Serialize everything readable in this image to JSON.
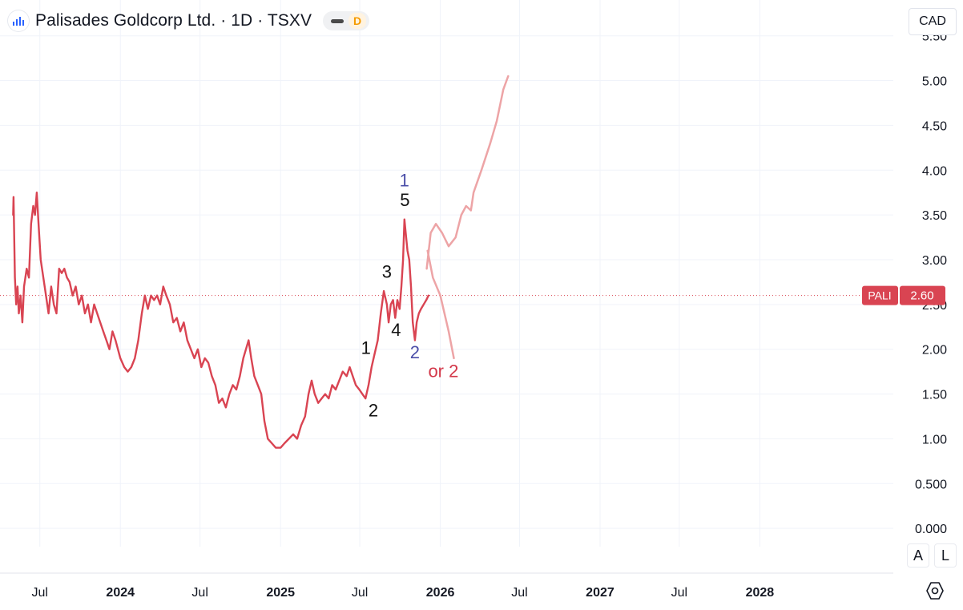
{
  "header": {
    "title": "Palisades Goldcorp Ltd. · 1D · TSXV",
    "interval_badge": "D"
  },
  "currency": "CAD",
  "buttons": {
    "auto": "A",
    "log": "L"
  },
  "colors": {
    "price_line": "#d94452",
    "projection": "#eda4a6",
    "wave_label": "#111111",
    "alt_wave_label": "#4b4ea8",
    "alt_or": "#d3384a"
  },
  "chart_data": {
    "type": "line",
    "ylim": [
      -0.5,
      5.9
    ],
    "y_ticks": [
      "0.000",
      "0.500",
      "1.00",
      "1.50",
      "2.00",
      "2.50",
      "3.00",
      "3.50",
      "4.00",
      "4.50",
      "5.00",
      "5.50"
    ],
    "y_tick_values": [
      0,
      0.5,
      1,
      1.5,
      2,
      2.5,
      3,
      3.5,
      4,
      4.5,
      5,
      5.5
    ],
    "x_range": [
      "2023-04-01",
      "2028-11-01"
    ],
    "x_ticks": [
      {
        "label": "Jul",
        "date": "2023-07-01",
        "bold": false
      },
      {
        "label": "2024",
        "date": "2024-01-01",
        "bold": true
      },
      {
        "label": "Jul",
        "date": "2024-07-01",
        "bold": false
      },
      {
        "label": "2025",
        "date": "2025-01-01",
        "bold": true
      },
      {
        "label": "Jul",
        "date": "2025-07-01",
        "bold": false
      },
      {
        "label": "2026",
        "date": "2026-01-01",
        "bold": true
      },
      {
        "label": "Jul",
        "date": "2026-07-01",
        "bold": false
      },
      {
        "label": "2027",
        "date": "2027-01-01",
        "bold": true
      },
      {
        "label": "Jul",
        "date": "2027-07-01",
        "bold": false
      },
      {
        "label": "2028",
        "date": "2028-01-01",
        "bold": true
      }
    ],
    "last_price": {
      "symbol": "PALI",
      "value": "2.60",
      "y": 2.6
    },
    "series": [
      {
        "style": "price",
        "points": [
          [
            "2023-05-01",
            3.5
          ],
          [
            "2023-05-02",
            3.7
          ],
          [
            "2023-05-05",
            2.8
          ],
          [
            "2023-05-08",
            2.5
          ],
          [
            "2023-05-11",
            2.7
          ],
          [
            "2023-05-14",
            2.4
          ],
          [
            "2023-05-18",
            2.6
          ],
          [
            "2023-05-22",
            2.3
          ],
          [
            "2023-05-26",
            2.7
          ],
          [
            "2023-06-01",
            2.9
          ],
          [
            "2023-06-06",
            2.8
          ],
          [
            "2023-06-11",
            3.4
          ],
          [
            "2023-06-16",
            3.6
          ],
          [
            "2023-06-20",
            3.5
          ],
          [
            "2023-06-24",
            3.75
          ],
          [
            "2023-06-28",
            3.4
          ],
          [
            "2023-07-03",
            3.0
          ],
          [
            "2023-07-09",
            2.8
          ],
          [
            "2023-07-15",
            2.6
          ],
          [
            "2023-07-21",
            2.4
          ],
          [
            "2023-07-27",
            2.7
          ],
          [
            "2023-08-02",
            2.5
          ],
          [
            "2023-08-08",
            2.4
          ],
          [
            "2023-08-14",
            2.9
          ],
          [
            "2023-08-20",
            2.85
          ],
          [
            "2023-08-26",
            2.9
          ],
          [
            "2023-09-01",
            2.8
          ],
          [
            "2023-09-07",
            2.75
          ],
          [
            "2023-09-14",
            2.6
          ],
          [
            "2023-09-21",
            2.7
          ],
          [
            "2023-09-28",
            2.5
          ],
          [
            "2023-10-05",
            2.6
          ],
          [
            "2023-10-12",
            2.4
          ],
          [
            "2023-10-19",
            2.5
          ],
          [
            "2023-10-26",
            2.3
          ],
          [
            "2023-11-02",
            2.5
          ],
          [
            "2023-11-09",
            2.4
          ],
          [
            "2023-11-16",
            2.3
          ],
          [
            "2023-11-23",
            2.2
          ],
          [
            "2023-11-30",
            2.1
          ],
          [
            "2023-12-07",
            2.0
          ],
          [
            "2023-12-14",
            2.2
          ],
          [
            "2023-12-21",
            2.1
          ],
          [
            "2024-01-01",
            1.9
          ],
          [
            "2024-01-10",
            1.8
          ],
          [
            "2024-01-18",
            1.75
          ],
          [
            "2024-01-26",
            1.8
          ],
          [
            "2024-02-03",
            1.9
          ],
          [
            "2024-02-11",
            2.1
          ],
          [
            "2024-02-19",
            2.4
          ],
          [
            "2024-02-26",
            2.6
          ],
          [
            "2024-03-04",
            2.45
          ],
          [
            "2024-03-11",
            2.6
          ],
          [
            "2024-03-18",
            2.55
          ],
          [
            "2024-03-25",
            2.6
          ],
          [
            "2024-04-01",
            2.5
          ],
          [
            "2024-04-08",
            2.7
          ],
          [
            "2024-04-15",
            2.6
          ],
          [
            "2024-04-23",
            2.5
          ],
          [
            "2024-05-01",
            2.3
          ],
          [
            "2024-05-09",
            2.35
          ],
          [
            "2024-05-17",
            2.2
          ],
          [
            "2024-05-25",
            2.3
          ],
          [
            "2024-06-02",
            2.1
          ],
          [
            "2024-06-10",
            2.0
          ],
          [
            "2024-06-18",
            1.9
          ],
          [
            "2024-06-26",
            2.0
          ],
          [
            "2024-07-04",
            1.8
          ],
          [
            "2024-07-12",
            1.9
          ],
          [
            "2024-07-20",
            1.85
          ],
          [
            "2024-07-28",
            1.7
          ],
          [
            "2024-08-05",
            1.6
          ],
          [
            "2024-08-13",
            1.4
          ],
          [
            "2024-08-21",
            1.45
          ],
          [
            "2024-08-29",
            1.35
          ],
          [
            "2024-09-06",
            1.5
          ],
          [
            "2024-09-14",
            1.6
          ],
          [
            "2024-09-22",
            1.55
          ],
          [
            "2024-09-30",
            1.7
          ],
          [
            "2024-10-08",
            1.9
          ],
          [
            "2024-10-14",
            2.0
          ],
          [
            "2024-10-20",
            2.1
          ],
          [
            "2024-10-26",
            1.9
          ],
          [
            "2024-11-02",
            1.7
          ],
          [
            "2024-11-10",
            1.6
          ],
          [
            "2024-11-18",
            1.5
          ],
          [
            "2024-11-25",
            1.2
          ],
          [
            "2024-12-03",
            1.0
          ],
          [
            "2024-12-12",
            0.95
          ],
          [
            "2024-12-21",
            0.9
          ],
          [
            "2025-01-01",
            0.9
          ],
          [
            "2025-01-10",
            0.95
          ],
          [
            "2025-01-20",
            1.0
          ],
          [
            "2025-01-30",
            1.05
          ],
          [
            "2025-02-08",
            1.0
          ],
          [
            "2025-02-17",
            1.15
          ],
          [
            "2025-02-26",
            1.25
          ],
          [
            "2025-03-06",
            1.5
          ],
          [
            "2025-03-13",
            1.65
          ],
          [
            "2025-03-20",
            1.5
          ],
          [
            "2025-03-28",
            1.4
          ],
          [
            "2025-04-05",
            1.45
          ],
          [
            "2025-04-13",
            1.5
          ],
          [
            "2025-04-21",
            1.45
          ],
          [
            "2025-04-29",
            1.6
          ],
          [
            "2025-05-07",
            1.55
          ],
          [
            "2025-05-15",
            1.65
          ],
          [
            "2025-05-23",
            1.75
          ],
          [
            "2025-06-01",
            1.7
          ],
          [
            "2025-06-08",
            1.8
          ],
          [
            "2025-06-15",
            1.7
          ],
          [
            "2025-06-22",
            1.6
          ],
          [
            "2025-06-30",
            1.55
          ],
          [
            "2025-07-07",
            1.5
          ],
          [
            "2025-07-14",
            1.45
          ],
          [
            "2025-07-21",
            1.6
          ],
          [
            "2025-07-28",
            1.8
          ],
          [
            "2025-08-04",
            1.95
          ],
          [
            "2025-08-11",
            2.1
          ],
          [
            "2025-08-18",
            2.4
          ],
          [
            "2025-08-25",
            2.65
          ],
          [
            "2025-09-01",
            2.5
          ],
          [
            "2025-09-05",
            2.3
          ],
          [
            "2025-09-10",
            2.5
          ],
          [
            "2025-09-15",
            2.55
          ],
          [
            "2025-09-20",
            2.35
          ],
          [
            "2025-09-25",
            2.55
          ],
          [
            "2025-09-30",
            2.45
          ],
          [
            "2025-10-04",
            2.7
          ],
          [
            "2025-10-08",
            3.0
          ],
          [
            "2025-10-11",
            3.45
          ],
          [
            "2025-10-14",
            3.3
          ],
          [
            "2025-10-18",
            3.1
          ],
          [
            "2025-10-22",
            3.0
          ],
          [
            "2025-10-26",
            2.7
          ],
          [
            "2025-10-30",
            2.3
          ],
          [
            "2025-11-04",
            2.1
          ],
          [
            "2025-11-08",
            2.3
          ],
          [
            "2025-11-13",
            2.4
          ],
          [
            "2025-11-18",
            2.45
          ],
          [
            "2025-11-24",
            2.5
          ],
          [
            "2025-11-30",
            2.55
          ],
          [
            "2025-12-05",
            2.6
          ]
        ]
      },
      {
        "style": "projection",
        "points": [
          [
            "2025-12-01",
            2.9
          ],
          [
            "2025-12-10",
            3.3
          ],
          [
            "2025-12-22",
            3.4
          ],
          [
            "2026-01-05",
            3.3
          ],
          [
            "2026-01-20",
            3.15
          ],
          [
            "2026-02-05",
            3.25
          ],
          [
            "2026-02-18",
            3.5
          ],
          [
            "2026-03-01",
            3.6
          ],
          [
            "2026-03-12",
            3.55
          ],
          [
            "2026-03-18",
            3.75
          ],
          [
            "2026-04-05",
            4.0
          ],
          [
            "2026-04-25",
            4.3
          ],
          [
            "2026-05-10",
            4.55
          ],
          [
            "2026-05-25",
            4.9
          ],
          [
            "2026-06-05",
            5.05
          ]
        ]
      },
      {
        "style": "projection",
        "points": [
          [
            "2025-12-03",
            3.1
          ],
          [
            "2025-12-15",
            2.8
          ],
          [
            "2026-01-01",
            2.6
          ],
          [
            "2026-01-20",
            2.2
          ],
          [
            "2026-02-01",
            1.9
          ]
        ]
      }
    ],
    "annotations": [
      {
        "text": "1",
        "date": "2025-07-15",
        "y": 1.95,
        "color": "wave"
      },
      {
        "text": "2",
        "date": "2025-08-01",
        "y": 1.25,
        "color": "wave"
      },
      {
        "text": "3",
        "date": "2025-09-01",
        "y": 2.8,
        "color": "wave"
      },
      {
        "text": "4",
        "date": "2025-09-22",
        "y": 2.15,
        "color": "wave"
      },
      {
        "text": "5",
        "date": "2025-10-12",
        "y": 3.6,
        "color": "wave"
      },
      {
        "text": "1",
        "date": "2025-10-11",
        "y": 3.82,
        "color": "alt"
      },
      {
        "text": "2",
        "date": "2025-11-04",
        "y": 1.9,
        "color": "alt"
      },
      {
        "text": "or 2",
        "date": "2026-01-08",
        "y": 1.69,
        "color": "or"
      }
    ]
  }
}
